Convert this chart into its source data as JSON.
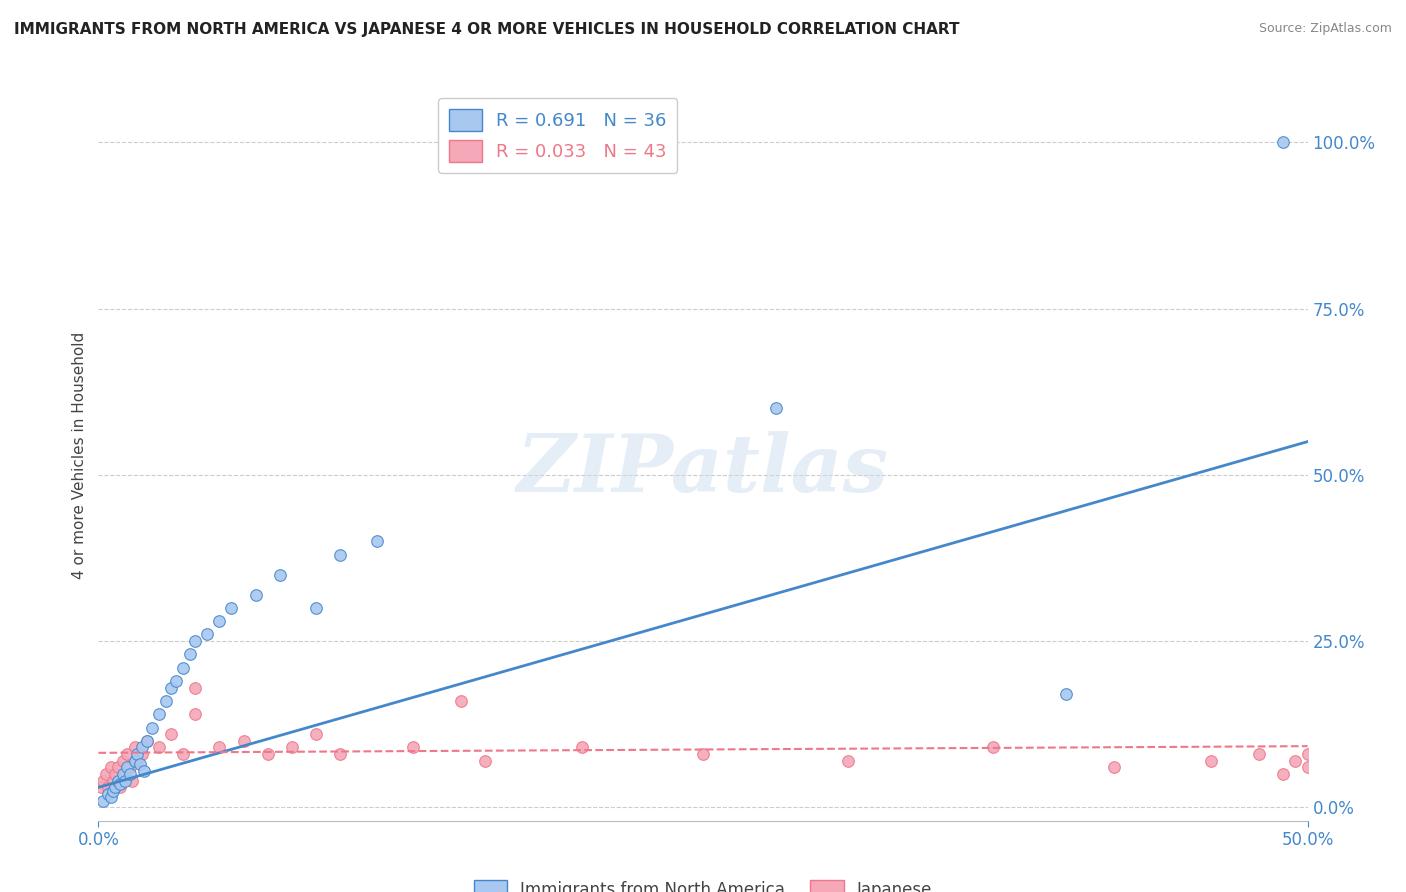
{
  "title": "IMMIGRANTS FROM NORTH AMERICA VS JAPANESE 4 OR MORE VEHICLES IN HOUSEHOLD CORRELATION CHART",
  "source": "Source: ZipAtlas.com",
  "ylabel": "4 or more Vehicles in Household",
  "xlim": [
    0.0,
    0.5
  ],
  "ylim": [
    -0.02,
    1.08
  ],
  "ytick_labels": [
    "0.0%",
    "25.0%",
    "50.0%",
    "75.0%",
    "100.0%"
  ],
  "ytick_vals": [
    0.0,
    0.25,
    0.5,
    0.75,
    1.0
  ],
  "xtick_vals": [
    0.0,
    0.5
  ],
  "xtick_labels": [
    "0.0%",
    "50.0%"
  ],
  "legend_label1": "Immigrants from North America",
  "legend_label2": "Japanese",
  "R1": 0.691,
  "N1": 36,
  "R2": 0.033,
  "N2": 43,
  "color_blue": "#A8C8F0",
  "color_pink": "#F4A8B8",
  "line_blue": "#4488CC",
  "line_pink": "#EE7788",
  "watermark_text": "ZIPatlas",
  "background_color": "#FFFFFF",
  "grid_color": "#CCCCCC",
  "blue_scatter_x": [
    0.002,
    0.004,
    0.005,
    0.006,
    0.007,
    0.008,
    0.009,
    0.01,
    0.011,
    0.012,
    0.013,
    0.015,
    0.016,
    0.017,
    0.018,
    0.019,
    0.02,
    0.022,
    0.025,
    0.028,
    0.03,
    0.032,
    0.035,
    0.038,
    0.04,
    0.045,
    0.05,
    0.055,
    0.065,
    0.075,
    0.09,
    0.1,
    0.115,
    0.28,
    0.4,
    0.49
  ],
  "blue_scatter_y": [
    0.01,
    0.02,
    0.015,
    0.025,
    0.03,
    0.04,
    0.035,
    0.05,
    0.04,
    0.06,
    0.05,
    0.07,
    0.08,
    0.065,
    0.09,
    0.055,
    0.1,
    0.12,
    0.14,
    0.16,
    0.18,
    0.19,
    0.21,
    0.23,
    0.25,
    0.26,
    0.28,
    0.3,
    0.32,
    0.35,
    0.3,
    0.38,
    0.4,
    0.6,
    0.17,
    1.0
  ],
  "pink_scatter_x": [
    0.001,
    0.002,
    0.003,
    0.004,
    0.005,
    0.006,
    0.007,
    0.008,
    0.009,
    0.01,
    0.011,
    0.012,
    0.013,
    0.014,
    0.015,
    0.016,
    0.018,
    0.02,
    0.025,
    0.03,
    0.035,
    0.04,
    0.05,
    0.06,
    0.07,
    0.08,
    0.1,
    0.13,
    0.16,
    0.2,
    0.25,
    0.31,
    0.37,
    0.42,
    0.46,
    0.48,
    0.49,
    0.495,
    0.5,
    0.5,
    0.15,
    0.09,
    0.04
  ],
  "pink_scatter_y": [
    0.03,
    0.04,
    0.05,
    0.03,
    0.06,
    0.04,
    0.05,
    0.06,
    0.03,
    0.07,
    0.05,
    0.08,
    0.06,
    0.04,
    0.09,
    0.07,
    0.08,
    0.1,
    0.09,
    0.11,
    0.08,
    0.14,
    0.09,
    0.1,
    0.08,
    0.09,
    0.08,
    0.09,
    0.07,
    0.09,
    0.08,
    0.07,
    0.09,
    0.06,
    0.07,
    0.08,
    0.05,
    0.07,
    0.06,
    0.08,
    0.16,
    0.11,
    0.18
  ],
  "blue_line_x": [
    0.0,
    0.5
  ],
  "blue_line_y": [
    0.03,
    0.55
  ],
  "pink_line_x": [
    0.0,
    0.5
  ],
  "pink_line_y": [
    0.082,
    0.092
  ],
  "pink_line_style": "--"
}
